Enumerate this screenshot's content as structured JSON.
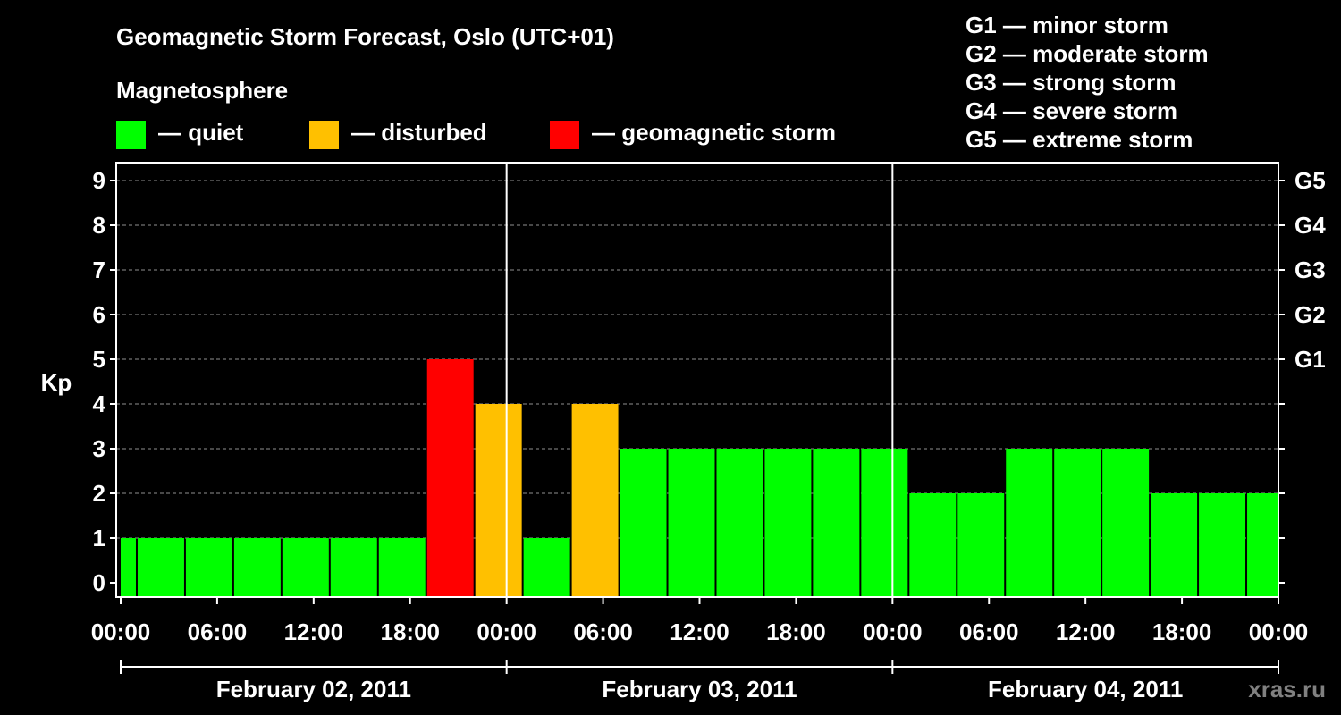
{
  "chart_data": {
    "type": "bar",
    "title": "Geomagnetic Storm Forecast, Oslo (UTC+01)",
    "subtitle": "Magnetosphere",
    "ylabel": "Kp",
    "ylim": [
      0,
      9
    ],
    "yticks": [
      "0",
      "1",
      "2",
      "3",
      "4",
      "5",
      "6",
      "7",
      "8",
      "9"
    ],
    "right_ticks": [
      {
        "kp": 5,
        "label": "G1"
      },
      {
        "kp": 6,
        "label": "G2"
      },
      {
        "kp": 7,
        "label": "G3"
      },
      {
        "kp": 8,
        "label": "G4"
      },
      {
        "kp": 9,
        "label": "G5"
      }
    ],
    "grid": true,
    "x_range_hours": [
      0,
      72
    ],
    "xticks": [
      "00:00",
      "06:00",
      "12:00",
      "18:00",
      "00:00",
      "06:00",
      "12:00",
      "18:00",
      "00:00",
      "06:00",
      "12:00",
      "18:00",
      "00:00"
    ],
    "days": [
      "February 02, 2011",
      "February 03, 2011",
      "February 04, 2011"
    ],
    "colors": {
      "quiet": "#00ff00",
      "disturbed": "#ffc000",
      "storm": "#ff0000"
    },
    "categories": [
      "quiet",
      "disturbed",
      "geomagnetic storm"
    ],
    "legend": [
      {
        "key": "quiet",
        "label": "— quiet"
      },
      {
        "key": "disturbed",
        "label": "— disturbed"
      },
      {
        "key": "storm",
        "label": "— geomagnetic storm"
      }
    ],
    "storm_scale": [
      "G1 — minor storm",
      "G2 — moderate storm",
      "G3 — strong storm",
      "G4 — severe storm",
      "G5 — extreme storm"
    ],
    "bars": [
      {
        "start": 0,
        "end": 1,
        "kp": 1,
        "status": "quiet"
      },
      {
        "start": 1,
        "end": 4,
        "kp": 1,
        "status": "quiet"
      },
      {
        "start": 4,
        "end": 7,
        "kp": 1,
        "status": "quiet"
      },
      {
        "start": 7,
        "end": 10,
        "kp": 1,
        "status": "quiet"
      },
      {
        "start": 10,
        "end": 13,
        "kp": 1,
        "status": "quiet"
      },
      {
        "start": 13,
        "end": 16,
        "kp": 1,
        "status": "quiet"
      },
      {
        "start": 16,
        "end": 19,
        "kp": 1,
        "status": "quiet"
      },
      {
        "start": 19,
        "end": 22,
        "kp": 5,
        "status": "storm"
      },
      {
        "start": 22,
        "end": 25,
        "kp": 4,
        "status": "disturbed"
      },
      {
        "start": 25,
        "end": 28,
        "kp": 1,
        "status": "quiet"
      },
      {
        "start": 28,
        "end": 31,
        "kp": 4,
        "status": "disturbed"
      },
      {
        "start": 31,
        "end": 34,
        "kp": 3,
        "status": "quiet"
      },
      {
        "start": 34,
        "end": 37,
        "kp": 3,
        "status": "quiet"
      },
      {
        "start": 37,
        "end": 40,
        "kp": 3,
        "status": "quiet"
      },
      {
        "start": 40,
        "end": 43,
        "kp": 3,
        "status": "quiet"
      },
      {
        "start": 43,
        "end": 46,
        "kp": 3,
        "status": "quiet"
      },
      {
        "start": 46,
        "end": 49,
        "kp": 3,
        "status": "quiet"
      },
      {
        "start": 49,
        "end": 52,
        "kp": 2,
        "status": "quiet"
      },
      {
        "start": 52,
        "end": 55,
        "kp": 2,
        "status": "quiet"
      },
      {
        "start": 55,
        "end": 58,
        "kp": 3,
        "status": "quiet"
      },
      {
        "start": 58,
        "end": 61,
        "kp": 3,
        "status": "quiet"
      },
      {
        "start": 61,
        "end": 64,
        "kp": 3,
        "status": "quiet"
      },
      {
        "start": 64,
        "end": 67,
        "kp": 2,
        "status": "quiet"
      },
      {
        "start": 67,
        "end": 70,
        "kp": 2,
        "status": "quiet"
      },
      {
        "start": 70,
        "end": 72,
        "kp": 2,
        "status": "quiet"
      }
    ]
  },
  "watermark": "xras.ru"
}
